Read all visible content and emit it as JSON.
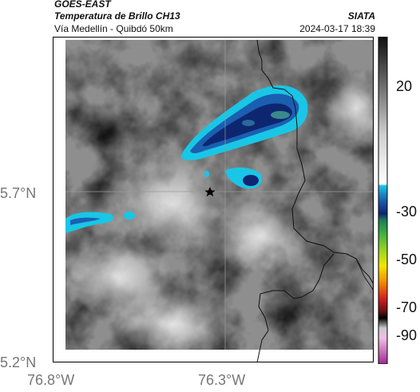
{
  "header": {
    "satellite": "GOES-EAST",
    "product": "Temperatura de Brillo CH13",
    "org": "SIATA",
    "region": "Vía Medellín - Quibdó 50km",
    "datetime": "2024-03-17 18:39"
  },
  "axes": {
    "lat_ticks": [
      "5.7°N",
      "5.2°N"
    ],
    "lon_ticks": [
      "76.8°W",
      "76.3°W"
    ]
  },
  "colorbar": {
    "ticks": [
      "20",
      "-30",
      "-50",
      "-70",
      "-90"
    ],
    "colors": {
      "cyan": "#19c6e6",
      "blue": "#1b5fb0",
      "navy": "#0e2670",
      "green": "#3cb043",
      "yellow": "#f2e600",
      "orange": "#f28c00",
      "red": "#d42020",
      "magenta": "#c040b0"
    }
  },
  "map": {
    "marker": "star-icon"
  }
}
